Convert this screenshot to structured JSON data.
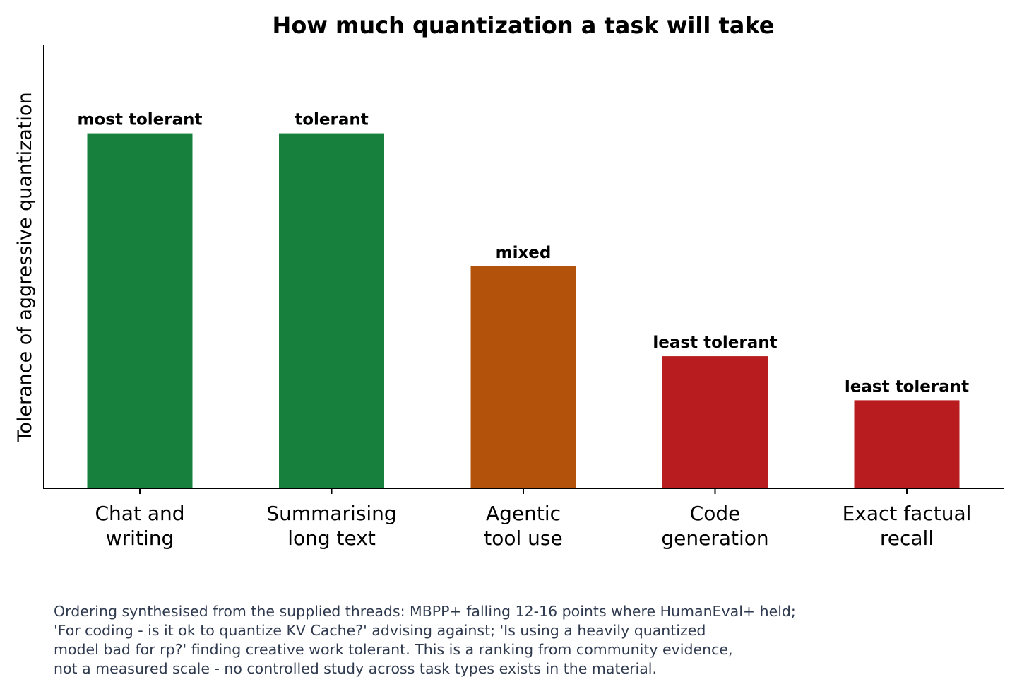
{
  "chart_data": {
    "type": "bar",
    "title": "How much quantization a task will take",
    "xlabel": "",
    "ylabel": "Tolerance of aggressive quantization",
    "categories": [
      [
        "Chat and",
        "writing"
      ],
      [
        "Summarising",
        "long text"
      ],
      [
        "Agentic",
        "tool use"
      ],
      [
        "Code",
        "generation"
      ],
      [
        "Exact factual",
        "recall"
      ]
    ],
    "values": [
      5,
      5,
      3.125,
      1.86,
      1.24
    ],
    "data_labels": [
      "most tolerant",
      "tolerant",
      "mixed",
      "least tolerant",
      "least tolerant"
    ],
    "colors": [
      "#17803d",
      "#17803d",
      "#b3530b",
      "#b81c1e",
      "#b81c1e"
    ],
    "ylim": [
      0,
      6.25
    ],
    "y_ticks_shown": false,
    "grid": false,
    "legend": "none"
  },
  "footnote": {
    "lines": [
      "Ordering synthesised from the supplied threads: MBPP+ falling 12-16 points where HumanEval+ held;",
      "'For coding - is it ok to quantize KV Cache?' advising against; 'Is using a heavily quantized",
      "model bad for rp?' finding creative work tolerant. This is a ranking from community evidence,",
      "not a measured scale - no controlled study across task types exists in the material."
    ]
  }
}
